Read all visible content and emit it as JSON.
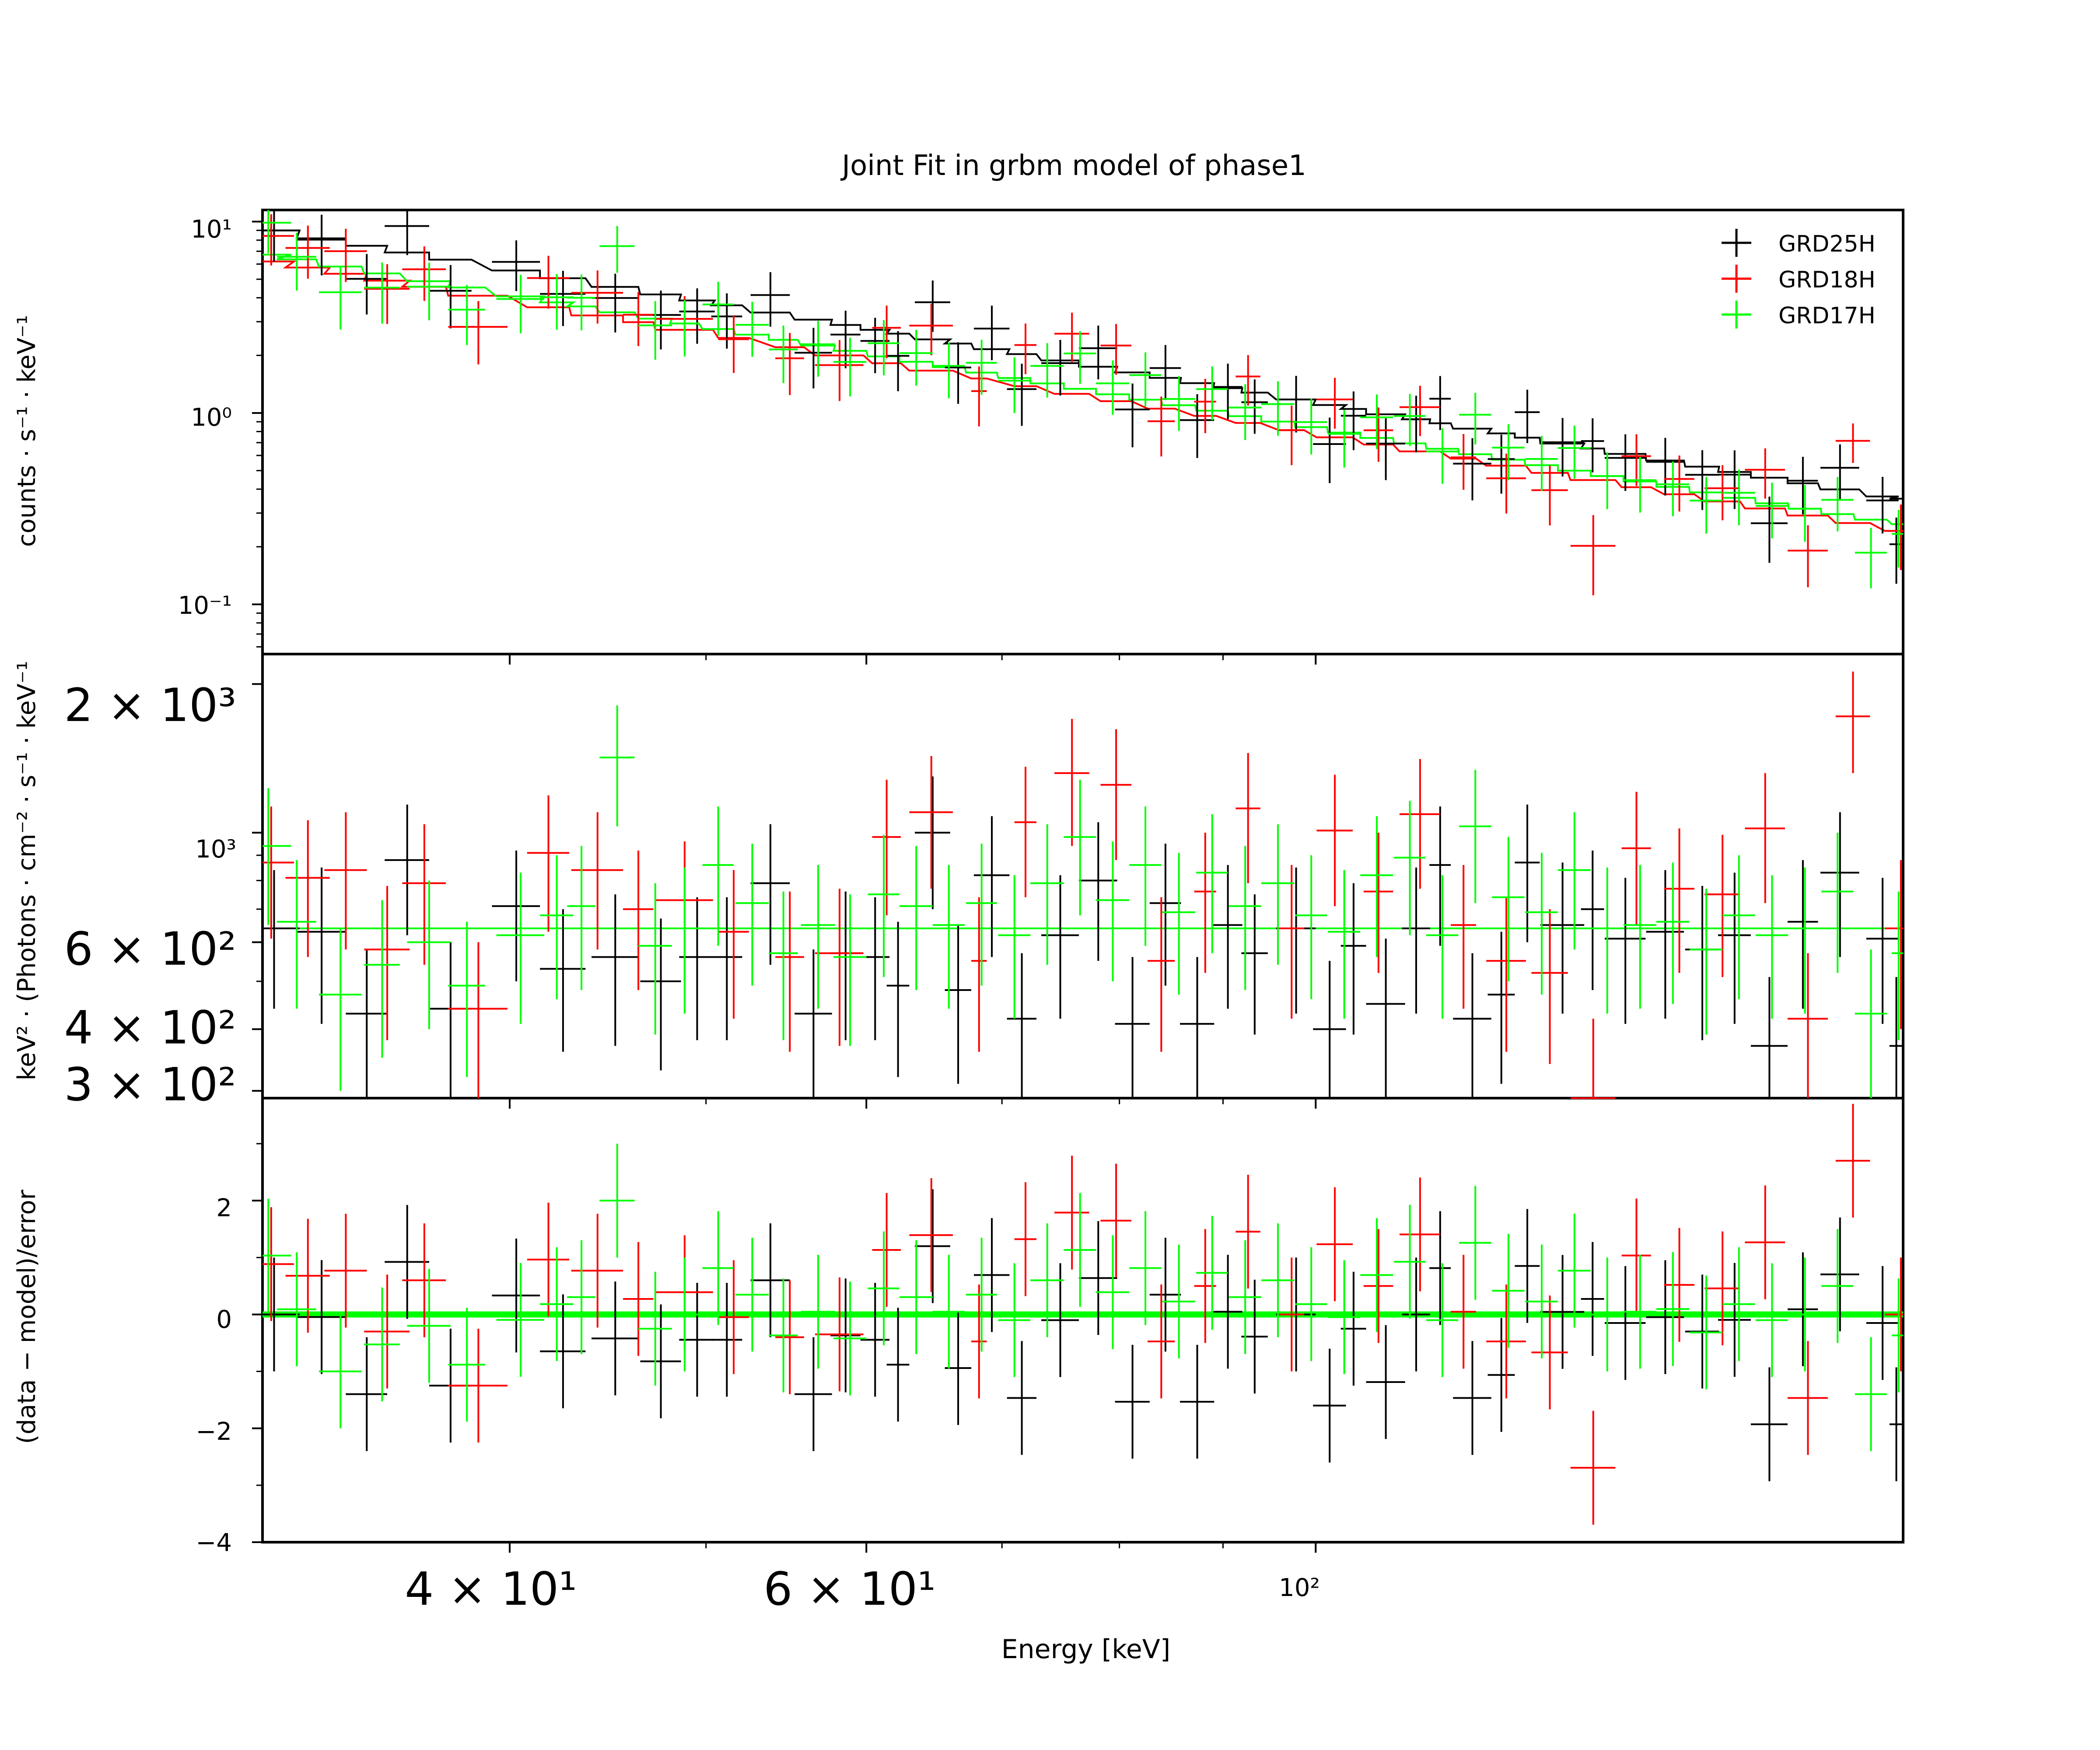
{
  "chart_data": {
    "type": "scatter",
    "title": "Joint Fit  in grbm model of phase1",
    "xlabel": "Energy [keV]",
    "xscale": "log",
    "xlim": [
      30.2,
      195
    ],
    "x_tick_labels": [
      "4 × 10¹",
      "6 × 10¹",
      "10²"
    ],
    "x_tick_values": [
      40,
      60,
      100
    ],
    "colors": {
      "GRD25H": "#000000",
      "GRD18H": "#ff0000",
      "GRD17H": "#00ff00"
    },
    "legend": {
      "position": "top-right",
      "entries": [
        "GRD25H",
        "GRD18H",
        "GRD17H"
      ]
    },
    "panels": [
      {
        "name": "counts",
        "ylabel": "counts · s⁻¹ · keV⁻¹",
        "yscale": "log",
        "ylim": [
          0.055,
          11.5
        ],
        "y_tick_labels": [
          "10¹",
          "10⁰",
          "10⁻¹"
        ],
        "y_tick_values": [
          10,
          1,
          0.1
        ]
      },
      {
        "name": "unfolded",
        "ylabel": "keV² · (Photons · cm⁻² · s⁻¹ · keV⁻¹",
        "yscale": "log",
        "ylim": [
          290,
          2300
        ],
        "y_tick_labels": [
          "2 × 10³",
          "10³",
          "6 × 10²",
          "4 × 10²",
          "3 × 10²"
        ],
        "y_tick_values": [
          2000,
          1000,
          600,
          400,
          300
        ]
      },
      {
        "name": "residuals",
        "ylabel": "(data − model)/error",
        "yscale": "linear",
        "ylim": [
          -4,
          3.8
        ],
        "y_tick_labels": [
          "2",
          "0",
          "−2",
          "−4"
        ],
        "y_tick_values": [
          2,
          0,
          -2,
          -4
        ]
      }
    ],
    "series": [
      {
        "name": "GRD25H",
        "x": [
          30.6,
          32.3,
          34.0,
          35.6,
          37.4,
          40.3,
          42.5,
          45.1,
          47.5,
          49.5,
          51.2,
          53.8,
          56.5,
          58.6,
          60.6,
          62.2,
          64.7,
          66.6,
          69.2,
          71.6,
          74.8,
          78.1,
          81.2,
          84.3,
          87.4,
          90.5,
          93.3,
          97.8,
          101.6,
          104.4,
          108.3,
          112.1,
          115.2,
          119.5,
          123.5,
          127.2,
          132.4,
          137.0,
          142.2,
          148.8,
          155.2,
          161.0,
          167.5,
          174.0,
          181.5,
          190.5,
          193.5
        ],
        "y": [
          640,
          630,
          430,
          880,
          440,
          710,
          530,
          560,
          500,
          560,
          560,
          790,
          430,
          570,
          560,
          490,
          1000,
          480,
          820,
          420,
          620,
          800,
          410,
          720,
          410,
          650,
          570,
          640,
          400,
          590,
          450,
          640,
          860,
          420,
          470,
          870,
          650,
          700,
          610,
          630,
          580,
          620,
          370,
          660,
          830,
          610,
          370
        ],
        "xerr": [
          0.9,
          0.9,
          0.8,
          0.9,
          0.9,
          1.1,
          1.1,
          1.2,
          1.1,
          1.0,
          0.9,
          1.2,
          1.2,
          1.0,
          1.0,
          0.8,
          1.3,
          1.0,
          1.4,
          1.2,
          1.6,
          1.7,
          1.6,
          1.5,
          1.7,
          1.5,
          1.4,
          2.2,
          1.9,
          1.5,
          2.4,
          1.8,
          1.4,
          2.6,
          1.9,
          1.8,
          3.3,
          1.8,
          3.3,
          3.2,
          3.0,
          3.0,
          3.5,
          3.0,
          4.0,
          3.5,
          1.5
        ],
        "yerr": [
          200,
          220,
          150,
          260,
          160,
          210,
          170,
          190,
          170,
          180,
          180,
          250,
          150,
          190,
          180,
          170,
          300,
          170,
          260,
          150,
          200,
          250,
          150,
          230,
          150,
          210,
          180,
          210,
          150,
          200,
          160,
          210,
          270,
          150,
          160,
          270,
          220,
          220,
          200,
          210,
          200,
          210,
          140,
          220,
          270,
          200,
          140
        ]
      },
      {
        "name": "GRD18H",
        "x": [
          30.5,
          31.8,
          33.2,
          34.8,
          36.3,
          38.6,
          41.8,
          44.2,
          46.3,
          48.8,
          51.6,
          55.0,
          58.2,
          61.4,
          64.6,
          68.2,
          71.9,
          75.8,
          79.7,
          83.9,
          88.2,
          92.6,
          97.3,
          102.2,
          107.4,
          112.6,
          118.3,
          124.2,
          130.5,
          137.1,
          144.0,
          151.2,
          158.8,
          166.7,
          175.0,
          184.2,
          194.5
        ],
        "y": [
          870,
          810,
          840,
          580,
          790,
          440,
          910,
          840,
          700,
          730,
          630,
          560,
          570,
          980,
          1100,
          550,
          1050,
          1320,
          1250,
          550,
          760,
          1120,
          640,
          1010,
          760,
          1090,
          650,
          550,
          520,
          290,
          930,
          770,
          750,
          1020,
          420,
          1720,
          640
        ],
        "xerr": [
          0.8,
          0.8,
          0.8,
          0.9,
          0.9,
          1.3,
          1.0,
          1.3,
          0.8,
          1.6,
          0.9,
          0.9,
          1.6,
          1.0,
          1.6,
          0.6,
          0.9,
          1.5,
          1.4,
          1.3,
          1.1,
          1.3,
          1.4,
          2.1,
          1.8,
          2.6,
          1.7,
          2.8,
          2.7,
          3.5,
          2.4,
          2.6,
          3.2,
          3.8,
          4.0,
          3.6,
          3.5
        ],
        "yerr": [
          260,
          250,
          260,
          200,
          250,
          160,
          280,
          260,
          220,
          230,
          210,
          200,
          200,
          300,
          330,
          190,
          310,
          380,
          370,
          190,
          240,
          330,
          220,
          300,
          240,
          320,
          210,
          190,
          180,
          130,
          280,
          250,
          240,
          300,
          150,
          400,
          240
        ]
      },
      {
        "name": "GRD17H",
        "x": [
          30.4,
          31.4,
          33.0,
          34.6,
          36.5,
          38.1,
          40.5,
          42.2,
          43.4,
          45.2,
          47.2,
          48.8,
          50.7,
          52.7,
          54.6,
          56.8,
          58.9,
          61.2,
          63.5,
          65.9,
          68.4,
          71.0,
          73.7,
          76.5,
          79.4,
          82.4,
          85.6,
          88.9,
          92.3,
          95.8,
          99.5,
          103.3,
          107.2,
          111.3,
          115.5,
          119.9,
          124.5,
          129.3,
          134.2,
          139.3,
          144.6,
          150.1,
          155.9,
          161.8,
          168.0,
          174.4,
          181.0,
          188.0,
          194.0
        ],
        "y": [
          940,
          660,
          470,
          540,
          600,
          490,
          620,
          680,
          710,
          1420,
          590,
          640,
          860,
          720,
          570,
          650,
          560,
          750,
          710,
          650,
          720,
          620,
          790,
          980,
          730,
          860,
          690,
          830,
          710,
          790,
          680,
          630,
          820,
          890,
          620,
          1030,
          740,
          690,
          840,
          640,
          650,
          660,
          580,
          680,
          620,
          640,
          760,
          430,
          570
        ],
        "xerr": [
          0.8,
          0.7,
          0.8,
          0.7,
          0.9,
          0.8,
          1.1,
          0.8,
          0.7,
          0.9,
          0.9,
          0.8,
          0.9,
          1.0,
          0.9,
          1.1,
          1.1,
          1.1,
          1.2,
          1.2,
          1.2,
          1.3,
          1.4,
          1.4,
          1.5,
          1.5,
          1.6,
          1.6,
          1.7,
          1.8,
          1.8,
          1.9,
          2.0,
          2.0,
          2.1,
          2.2,
          2.3,
          2.4,
          2.5,
          2.6,
          2.7,
          2.8,
          2.9,
          3.0,
          3.1,
          3.2,
          3.3,
          3.4,
          1.5
        ],
        "yerr": [
          290,
          220,
          170,
          190,
          200,
          170,
          210,
          220,
          230,
          390,
          200,
          210,
          270,
          230,
          190,
          210,
          190,
          240,
          230,
          210,
          230,
          200,
          250,
          300,
          230,
          270,
          220,
          260,
          230,
          250,
          220,
          210,
          260,
          270,
          200,
          310,
          240,
          220,
          260,
          210,
          210,
          210,
          190,
          220,
          200,
          210,
          240,
          150,
          190
        ]
      }
    ]
  }
}
